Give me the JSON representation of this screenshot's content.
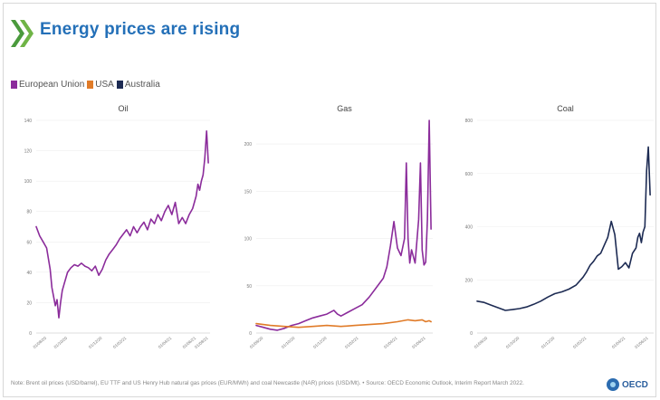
{
  "header": {
    "title": "Energy prices are rising"
  },
  "legend": [
    {
      "label": "European Union",
      "color": "#8b2c9b"
    },
    {
      "label": "USA",
      "color": "#e07b28"
    },
    {
      "label": "Australia",
      "color": "#1d2b53"
    }
  ],
  "footer": {
    "note": "Note: Brent oil prices (USD/barrel), EU TTF and US Henry Hub natural gas prices (EUR/MWh) and coal Newcastle (NAR) prices (USD/Mt). • Source: OECD Economic Outlook, Interim Report March 2022.",
    "brand": "OECD"
  },
  "chart_data": [
    {
      "type": "line",
      "title": "Oil",
      "ylim": [
        0,
        140
      ],
      "yticks": [
        0,
        20,
        40,
        60,
        80,
        100,
        120,
        140
      ],
      "xlim": [
        0,
        100
      ],
      "xtick_labels": [
        {
          "pos": 6,
          "label": "01/08/20"
        },
        {
          "pos": 18,
          "label": "01/10/20"
        },
        {
          "pos": 38,
          "label": "01/12/20"
        },
        {
          "pos": 52,
          "label": "01/02/21"
        },
        {
          "pos": 78,
          "label": "01/04/21"
        },
        {
          "pos": 92,
          "label": "01/06/21"
        },
        {
          "pos": 99,
          "label": "01/08/21"
        }
      ],
      "series": [
        {
          "name": "European Union",
          "color": "#8b2c9b",
          "x": [
            0,
            2,
            4,
            6,
            8,
            9,
            10,
            11,
            12,
            13,
            14,
            15,
            16,
            18,
            20,
            22,
            24,
            26,
            28,
            30,
            32,
            34,
            36,
            38,
            40,
            42,
            44,
            46,
            48,
            50,
            52,
            54,
            56,
            58,
            60,
            62,
            64,
            66,
            68,
            70,
            72,
            74,
            76,
            78,
            80,
            82,
            84,
            86,
            88,
            90,
            92,
            93,
            94,
            95,
            96,
            97,
            98,
            99
          ],
          "values": [
            70,
            64,
            60,
            56,
            42,
            30,
            24,
            18,
            22,
            10,
            20,
            28,
            32,
            40,
            43,
            45,
            44,
            46,
            44,
            43,
            41,
            44,
            38,
            42,
            48,
            52,
            55,
            58,
            62,
            65,
            68,
            64,
            70,
            66,
            70,
            73,
            68,
            75,
            72,
            78,
            74,
            80,
            84,
            78,
            86,
            72,
            76,
            72,
            78,
            82,
            90,
            98,
            94,
            100,
            104,
            115,
            133,
            112
          ]
        }
      ]
    },
    {
      "type": "line",
      "title": "Gas",
      "ylim": [
        0,
        225
      ],
      "yticks": [
        0,
        50,
        100,
        150,
        200
      ],
      "xlim": [
        0,
        100
      ],
      "xtick_labels": [
        {
          "pos": 4,
          "label": "01/08/20"
        },
        {
          "pos": 22,
          "label": "01/10/20"
        },
        {
          "pos": 40,
          "label": "01/12/20"
        },
        {
          "pos": 58,
          "label": "01/02/21"
        },
        {
          "pos": 80,
          "label": "01/04/21"
        },
        {
          "pos": 96,
          "label": "01/06/21"
        }
      ],
      "series": [
        {
          "name": "European Union",
          "color": "#8b2c9b",
          "x": [
            0,
            4,
            8,
            12,
            16,
            20,
            24,
            28,
            32,
            36,
            40,
            44,
            46,
            48,
            52,
            56,
            60,
            64,
            68,
            72,
            74,
            76,
            78,
            80,
            82,
            84,
            85,
            86,
            87,
            88,
            90,
            92,
            93,
            94,
            95,
            96,
            97,
            98,
            99
          ],
          "values": [
            8,
            6,
            4,
            3,
            5,
            8,
            10,
            13,
            16,
            18,
            20,
            24,
            20,
            18,
            22,
            26,
            30,
            38,
            48,
            58,
            70,
            92,
            118,
            90,
            82,
            100,
            180,
            100,
            74,
            88,
            74,
            120,
            180,
            88,
            72,
            75,
            120,
            225,
            110
          ]
        },
        {
          "name": "USA",
          "color": "#e07b28",
          "x": [
            0,
            8,
            16,
            24,
            32,
            40,
            48,
            56,
            64,
            72,
            80,
            86,
            90,
            94,
            96,
            98,
            99
          ],
          "values": [
            10,
            8,
            7,
            6,
            7,
            8,
            7,
            8,
            9,
            10,
            12,
            14,
            13,
            14,
            12,
            13,
            12
          ]
        }
      ]
    },
    {
      "type": "line",
      "title": "Coal",
      "ylim": [
        0,
        800
      ],
      "yticks": [
        0,
        200,
        400,
        600,
        800
      ],
      "xlim": [
        0,
        100
      ],
      "xtick_labels": [
        {
          "pos": 6,
          "label": "01/08/20"
        },
        {
          "pos": 24,
          "label": "01/10/20"
        },
        {
          "pos": 44,
          "label": "01/12/20"
        },
        {
          "pos": 62,
          "label": "01/02/21"
        },
        {
          "pos": 84,
          "label": "01/04/21"
        },
        {
          "pos": 97,
          "label": "01/06/21"
        }
      ],
      "series": [
        {
          "name": "Australia",
          "color": "#1d2b53",
          "x": [
            0,
            4,
            8,
            12,
            16,
            20,
            24,
            28,
            32,
            36,
            40,
            44,
            48,
            52,
            56,
            60,
            62,
            64,
            66,
            68,
            70,
            72,
            74,
            76,
            78,
            80,
            82,
            84,
            86,
            88,
            90,
            91,
            92,
            93,
            94,
            95,
            96,
            97,
            98
          ],
          "values": [
            120,
            115,
            105,
            95,
            85,
            88,
            92,
            98,
            108,
            120,
            135,
            148,
            155,
            165,
            180,
            210,
            230,
            255,
            270,
            290,
            300,
            330,
            360,
            420,
            370,
            240,
            250,
            265,
            245,
            300,
            320,
            360,
            375,
            340,
            380,
            400,
            610,
            700,
            520
          ]
        }
      ]
    }
  ]
}
